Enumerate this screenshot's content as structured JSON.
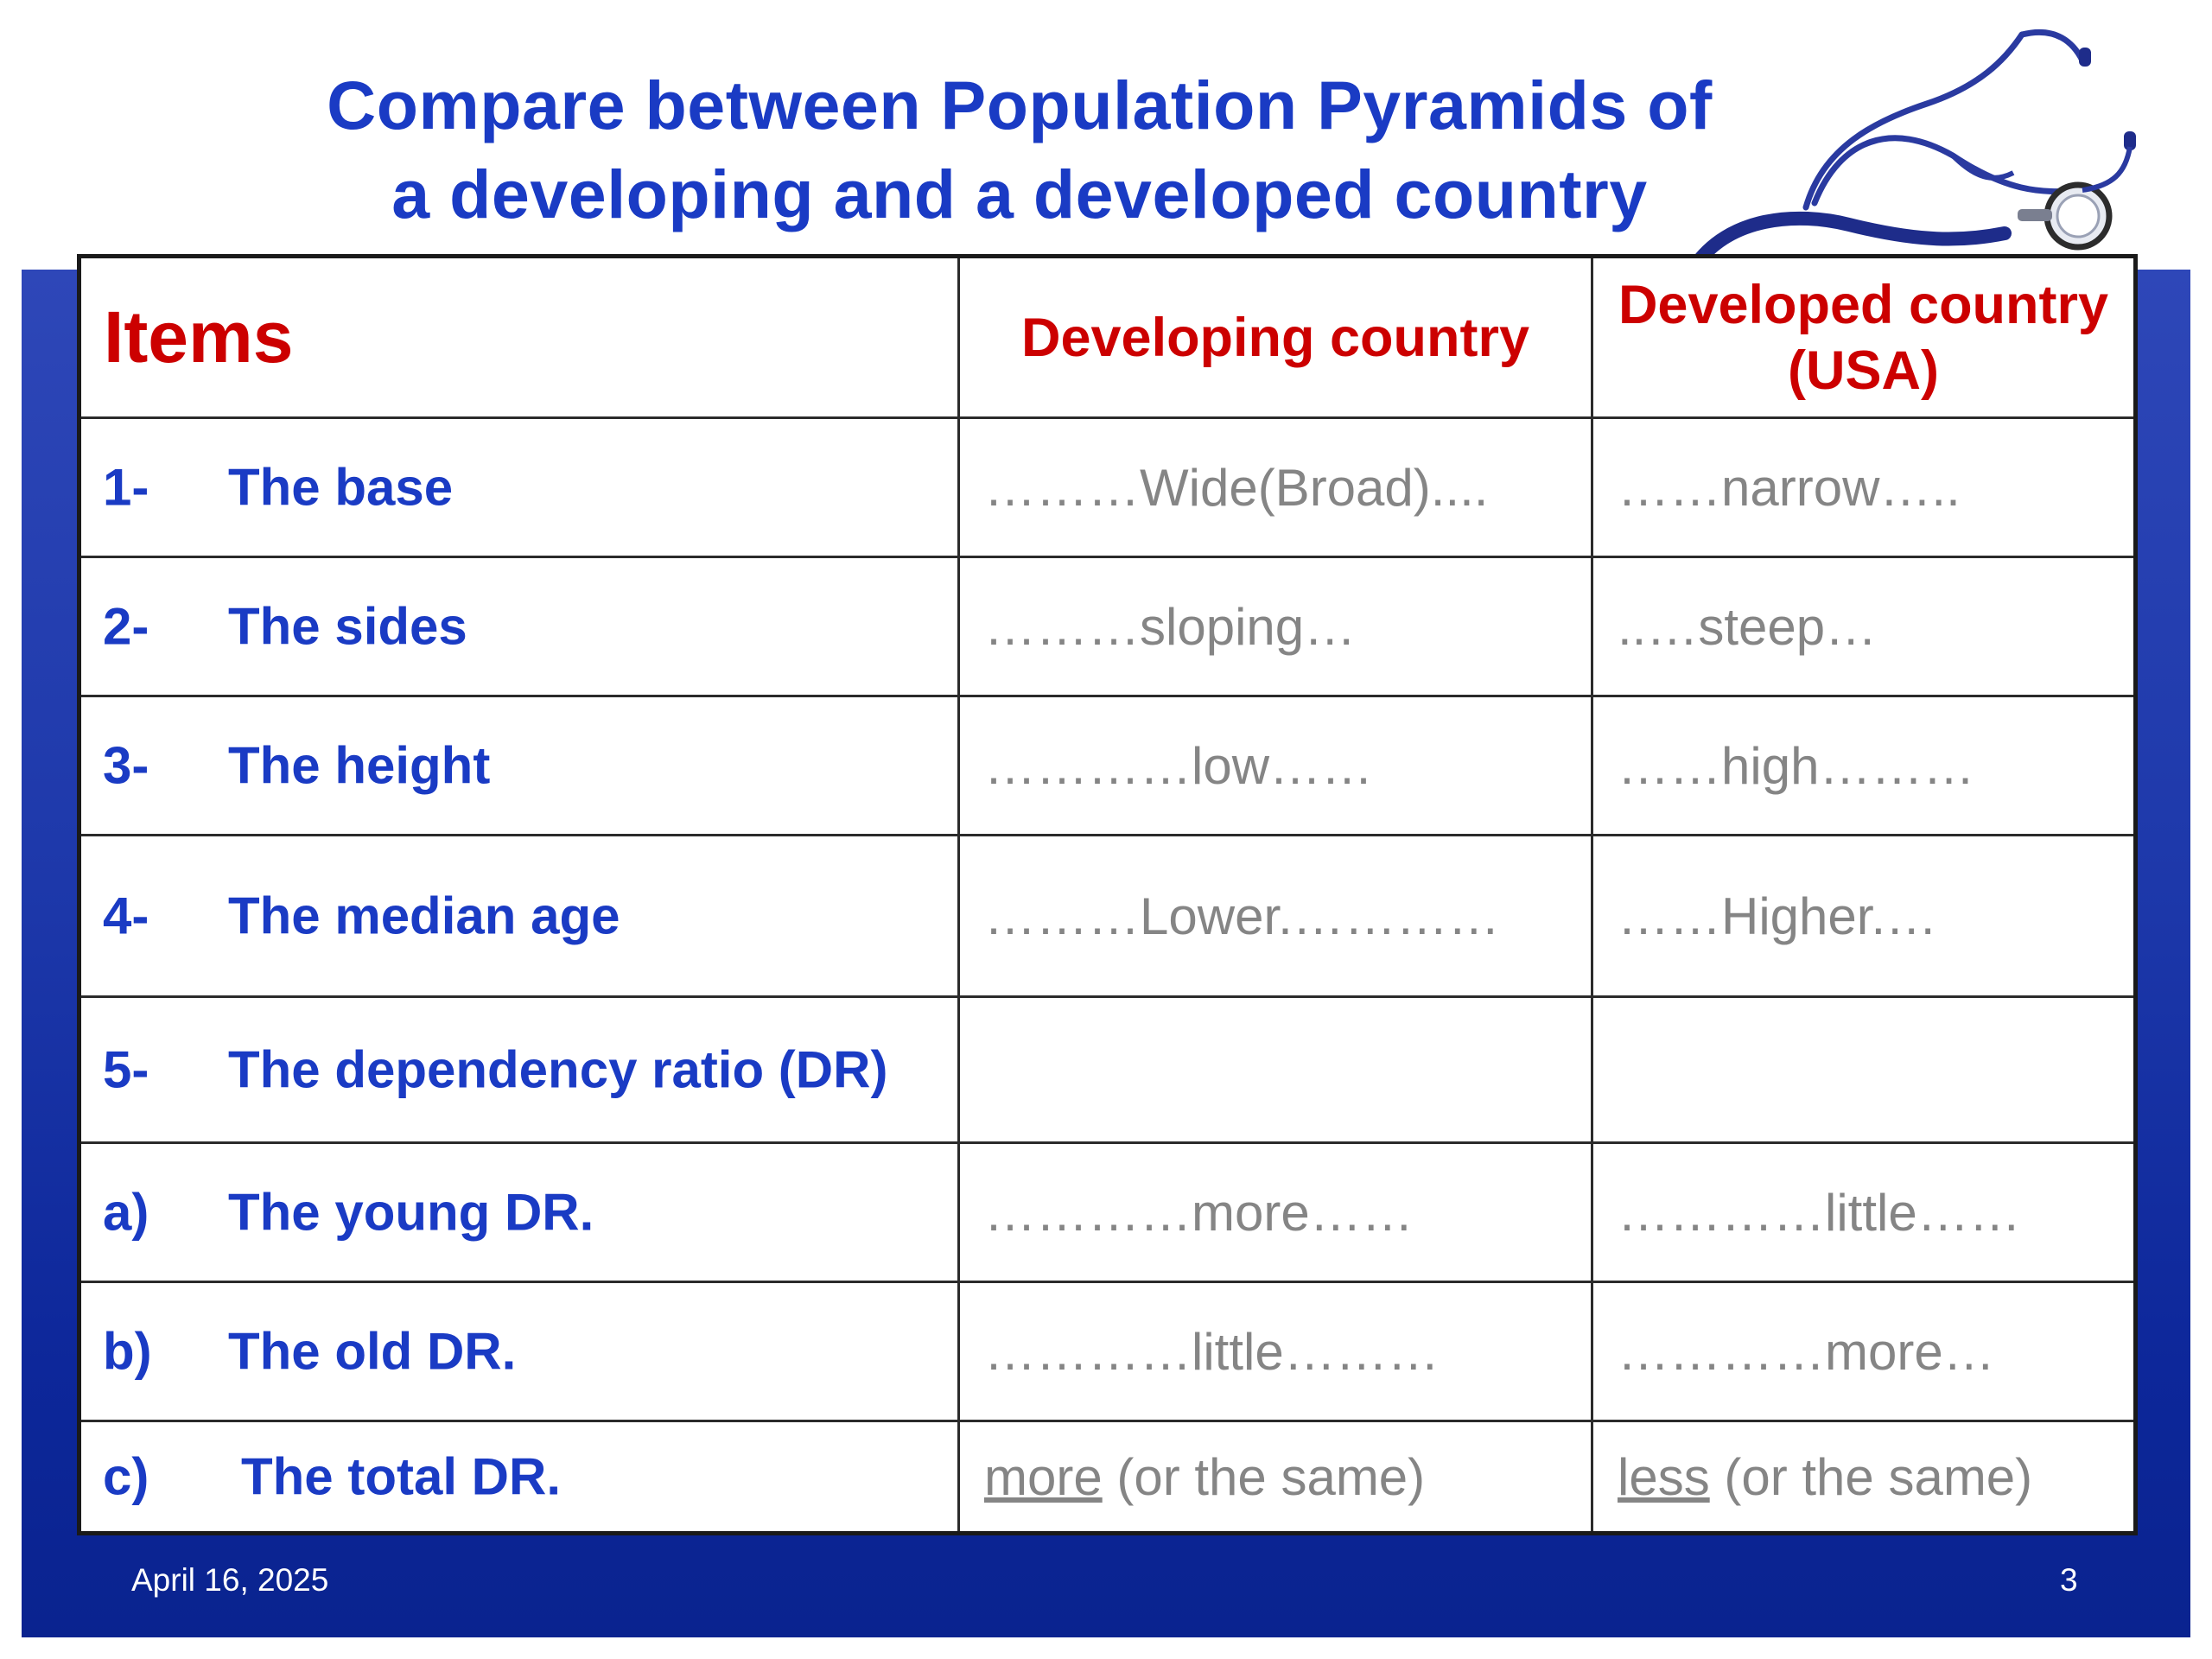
{
  "title": {
    "line1": "Compare between Population Pyramids of",
    "line2": "a developing and a developed country"
  },
  "table": {
    "header": {
      "items": "Items",
      "developing": "Developing country",
      "developed_line1": "Developed country",
      "developed_line2": "(USA)"
    },
    "rows": [
      {
        "num": "1-",
        "label": "The base",
        "developing": "………Wide(Broad)....",
        "developed": "……narrow….."
      },
      {
        "num": "2-",
        "label": "The sides",
        "developing": "………sloping…",
        "developed": "..…steep…"
      },
      {
        "num": "3-",
        "label": "The height",
        "developing": "…………low……",
        "developed": "……high………"
      },
      {
        "num": "4-",
        "label": "The median age",
        "developing": "………Lower.…………",
        "developed": "……Higher.…"
      },
      {
        "num": "5-",
        "label": "The dependency ratio (DR)",
        "developing": "",
        "developed": ""
      },
      {
        "num": "a)",
        "label": "The young DR.",
        "developing": "…………more……",
        "developed": "…………little……"
      },
      {
        "num": "b)",
        "label": "The old DR.",
        "developing": "…………little………",
        "developed": "…………more…"
      },
      {
        "num": "c)",
        "label": "The total DR.",
        "developing_u": "more",
        "developing_rest": " (or the same)",
        "developed_u": "less",
        "developed_rest": " (or the same)"
      }
    ]
  },
  "footer": {
    "date": "April 16, 2025",
    "page": "3"
  },
  "colors": {
    "title_blue": "#1a3bc4",
    "header_red": "#cc0000",
    "value_gray": "#858585",
    "band_blue": "#1d38aa"
  },
  "decorations": {
    "image": "stethoscope-icon"
  }
}
